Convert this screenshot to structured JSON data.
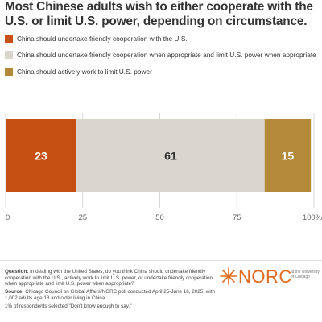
{
  "title": "Most Chinese adults wish to either cooperate with the U.S. or limit U.S. power, depending on circumstance.",
  "legend": [
    {
      "label": "China should undertake friendly cooperation with the U.S.",
      "color": "#c64f13"
    },
    {
      "label": "China should undertake friendly cooperation when appropriate and limit U.S. power when appropriate",
      "color": "#d9d6cf"
    },
    {
      "label": "China should actively work to limit U.S. power",
      "color": "#b28a3a"
    }
  ],
  "chart_data": {
    "type": "bar",
    "orientation": "horizontal-stacked",
    "categories": [
      ""
    ],
    "series": [
      {
        "name": "China should undertake friendly cooperation with the U.S.",
        "values": [
          23
        ],
        "color": "#c64f13",
        "label_color": "#ffffff"
      },
      {
        "name": "China should undertake friendly cooperation when appropriate and limit U.S. power when appropriate",
        "values": [
          61
        ],
        "color": "#d9d6cf",
        "label_color": "#333333"
      },
      {
        "name": "China should actively work to limit U.S. power",
        "values": [
          15
        ],
        "color": "#b28a3a",
        "label_color": "#ffffff"
      }
    ],
    "xlim": [
      0,
      100
    ],
    "xticks": [
      0,
      25,
      50,
      75,
      100
    ],
    "xtick_labels": [
      "0",
      "25",
      "50",
      "75",
      "100%"
    ],
    "grid": "vertical"
  },
  "notes": {
    "question_label": "Question:",
    "question": "In dealing with the United States, do you think China should undertake friendly cooperation with the U.S., actively work to limit U.S. power, or undertake friendly cooperation when appropriate and limit U.S. power when appropriate?",
    "source_label": "Source:",
    "source": "Chicago Council on Global Affairs/NORC poll conducted April 25-June 16, 2025, with 1,002 adults age 18 and older living in China.",
    "dont_know": "1% of respondents selected \"Don't know enough to say.\""
  },
  "logo": {
    "name": "NORC",
    "tagline": "at the University of Chicago",
    "color": "#e06a1f"
  }
}
